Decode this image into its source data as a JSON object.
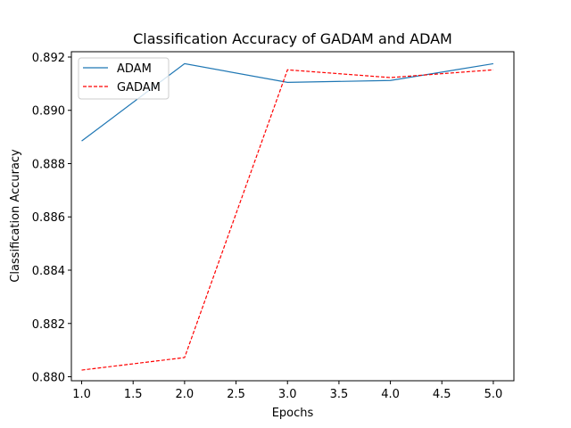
{
  "chart_data": {
    "type": "line",
    "title": "Classification Accuracy of GADAM and ADAM",
    "xlabel": "Epochs",
    "ylabel": "Classification Accuracy",
    "x": [
      1.0,
      2.0,
      3.0,
      4.0,
      5.0
    ],
    "series": [
      {
        "name": "ADAM",
        "values": [
          0.88885,
          0.89175,
          0.89105,
          0.89112,
          0.89175
        ],
        "color": "#1f77b4",
        "style": "solid"
      },
      {
        "name": "GADAM",
        "values": [
          0.88025,
          0.88072,
          0.89152,
          0.89123,
          0.89152
        ],
        "color": "#ff0000",
        "style": "dashed"
      }
    ],
    "xlim": [
      0.9,
      5.2
    ],
    "ylim": [
      0.87985,
      0.8922
    ],
    "xticks": [
      1.0,
      1.5,
      2.0,
      2.5,
      3.0,
      3.5,
      4.0,
      4.5,
      5.0
    ],
    "xtick_labels": [
      "1.0",
      "1.5",
      "2.0",
      "2.5",
      "3.0",
      "3.5",
      "4.0",
      "4.5",
      "5.0"
    ],
    "yticks": [
      0.88,
      0.882,
      0.884,
      0.886,
      0.888,
      0.89,
      0.892
    ],
    "ytick_labels": [
      "0.880",
      "0.882",
      "0.884",
      "0.886",
      "0.888",
      "0.890",
      "0.892"
    ],
    "grid": false,
    "legend_position": "top-left"
  }
}
